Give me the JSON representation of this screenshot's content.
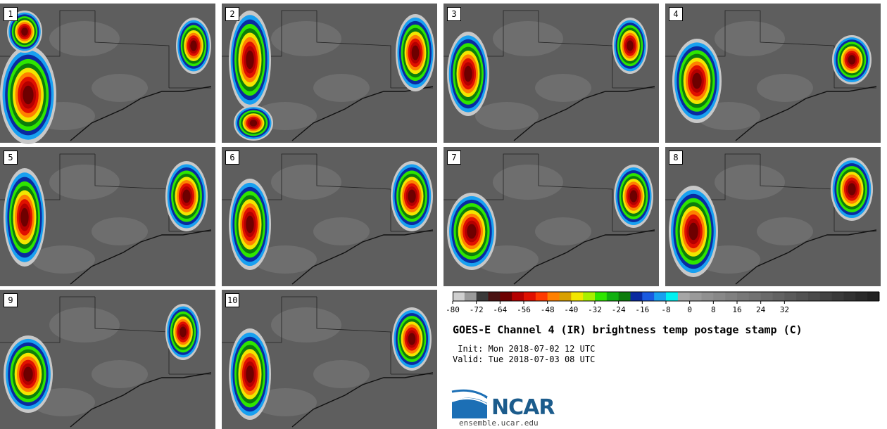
{
  "panels": [
    {
      "label": "1"
    },
    {
      "label": "2"
    },
    {
      "label": "3"
    },
    {
      "label": "4"
    },
    {
      "label": "5"
    },
    {
      "label": "6"
    },
    {
      "label": "7"
    },
    {
      "label": "8"
    },
    {
      "label": "9"
    },
    {
      "label": "10"
    }
  ],
  "legend": {
    "colors": [
      "#cfcfcf",
      "#9a9a9a",
      "#3a3a3a",
      "#4a1212",
      "#6e0000",
      "#b40000",
      "#e01000",
      "#ff3a00",
      "#ff8000",
      "#d8a000",
      "#f2e600",
      "#a8ef00",
      "#2ee600",
      "#10b010",
      "#0c7c0c",
      "#0a2aa0",
      "#1a5ae0",
      "#18a0f0",
      "#00f0f0",
      "#a6a6a6",
      "#9a9a9a",
      "#909090",
      "#888888",
      "#808080",
      "#787878",
      "#727272",
      "#6a6a6a",
      "#626262",
      "#5a5a5a",
      "#525252",
      "#4a4a4a",
      "#424242",
      "#3a3a3a",
      "#323232",
      "#2a2a2a",
      "#222222"
    ],
    "ticks": [
      "-80",
      "-72",
      "-64",
      "-56",
      "-48",
      "-40",
      "-32",
      "-24",
      "-16",
      "-8",
      "0",
      "8",
      "16",
      "24",
      "32"
    ]
  },
  "title": "GOES-E Channel 4 (IR) brightness temp postage stamp (C)",
  "init": " Init: Mon 2018-07-02 12 UTC",
  "valid": "Valid: Tue 2018-07-03 08 UTC",
  "logo": {
    "text": "NCAR",
    "url": "ensemble.ucar.edu"
  }
}
